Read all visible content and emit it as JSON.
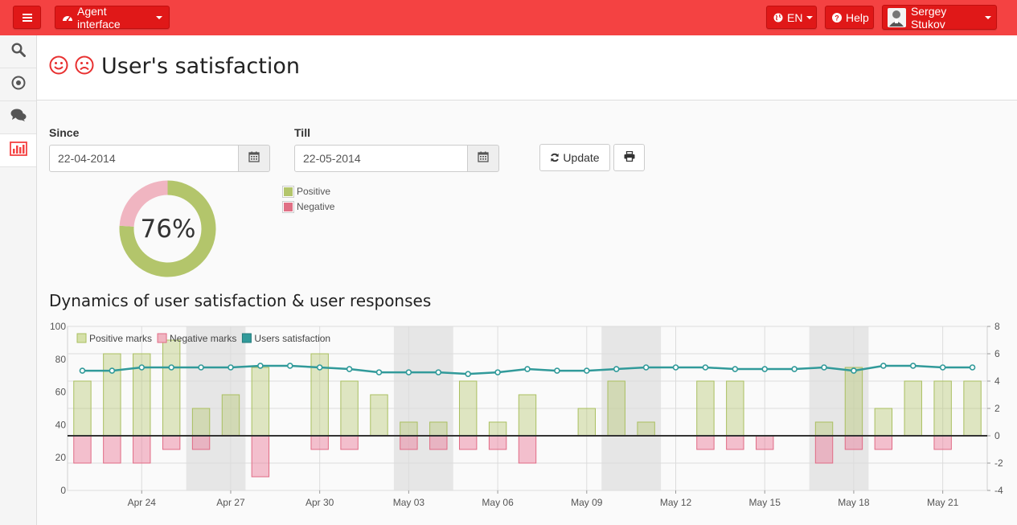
{
  "topbar": {
    "menu_icon": "hamburger-icon",
    "agent_label": "Agent interface",
    "agent_icon": "dashboard-icon",
    "lang_label": "EN",
    "lang_icon": "globe-icon",
    "help_label": "Help",
    "help_icon": "question-circle-icon",
    "user_name": "Sergey Stukov"
  },
  "sidebar": {
    "items": [
      {
        "icon": "search-icon"
      },
      {
        "icon": "target-icon"
      },
      {
        "icon": "comments-icon"
      },
      {
        "icon": "bar-chart-icon",
        "active": true
      }
    ]
  },
  "page": {
    "title": "User's satisfaction",
    "icons": [
      "smile-icon",
      "frown-icon"
    ]
  },
  "filters": {
    "since_label": "Since",
    "since_value": "22-04-2014",
    "till_label": "Till",
    "till_value": "22-05-2014",
    "update_label": "Update",
    "print_icon": "print-icon"
  },
  "donut": {
    "percent_label": "76%",
    "positive_fraction": 0.76,
    "legend": [
      {
        "label": "Positive",
        "color": "#b3c56b"
      },
      {
        "label": "Negative",
        "color": "#e07085"
      }
    ]
  },
  "section_title": "Dynamics of user satisfaction & user responses",
  "colors": {
    "accent": "#f44242",
    "positive": "#b3c56b",
    "negative": "#e07085",
    "satisfaction": "#319a9a"
  },
  "chart_data": {
    "type": "bar",
    "legend": [
      "Positive marks",
      "Negative marks",
      "Users satisfaction"
    ],
    "x": [
      "22-04",
      "23-04",
      "24-04",
      "25-04",
      "26-04",
      "27-04",
      "28-04",
      "29-04",
      "30-04",
      "01-05",
      "02-05",
      "03-05",
      "04-05",
      "05-05",
      "06-05",
      "07-05",
      "08-05",
      "09-05",
      "10-05",
      "11-05",
      "12-05",
      "13-05",
      "14-05",
      "15-05",
      "16-05",
      "17-05",
      "18-05",
      "19-05",
      "20-05",
      "21-05",
      "22-05"
    ],
    "x_tick_labels": [
      "Apr 24",
      "Apr 27",
      "Apr 30",
      "May 03",
      "May 06",
      "May 09",
      "May 12",
      "May 15",
      "May 18",
      "May 21"
    ],
    "series": [
      {
        "name": "Positive marks",
        "axis": "right",
        "values": [
          4,
          6,
          6,
          7,
          2,
          3,
          5,
          0,
          6,
          4,
          3,
          1,
          1,
          4,
          1,
          3,
          0,
          2,
          4,
          1,
          0,
          4,
          4,
          0,
          0,
          1,
          5,
          2,
          4,
          4,
          4
        ]
      },
      {
        "name": "Negative marks",
        "axis": "right",
        "values": [
          -2,
          -2,
          -2,
          -1,
          -1,
          0,
          -3,
          0,
          -1,
          -1,
          0,
          -1,
          -1,
          -1,
          -1,
          -2,
          0,
          0,
          0,
          0,
          0,
          -1,
          -1,
          -1,
          0,
          -2,
          -1,
          -1,
          0,
          -1,
          0
        ]
      },
      {
        "name": "Users satisfaction",
        "axis": "left",
        "values": [
          73,
          73,
          75,
          75,
          75,
          75,
          76,
          76,
          75,
          74,
          72,
          72,
          72,
          71,
          72,
          74,
          73,
          73,
          74,
          75,
          75,
          75,
          74,
          74,
          74,
          75,
          73,
          76,
          76,
          75,
          75
        ]
      }
    ],
    "weekend_ranges": [
      [
        4,
        5
      ],
      [
        11,
        12
      ],
      [
        18,
        19
      ],
      [
        25,
        26
      ]
    ],
    "left_axis": {
      "ticks": [
        0,
        20,
        40,
        60,
        80,
        100
      ],
      "ylim": [
        0,
        100
      ]
    },
    "right_axis": {
      "ticks": [
        -4,
        -2,
        0,
        2,
        4,
        6,
        8
      ],
      "ylim": [
        -4,
        8
      ]
    },
    "grid": true,
    "legend_position": "top-left"
  }
}
